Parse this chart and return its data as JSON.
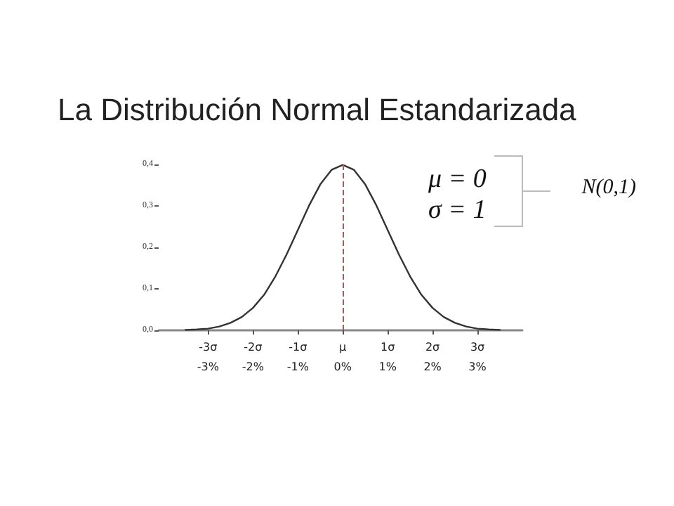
{
  "chart_data": {
    "type": "line",
    "title": "La Distribución Normal Estandarizada",
    "x": [
      -3.5,
      -3.25,
      -3,
      -2.75,
      -2.5,
      -2.25,
      -2,
      -1.75,
      -1.5,
      -1.25,
      -1,
      -0.75,
      -0.5,
      -0.25,
      0,
      0.25,
      0.5,
      0.75,
      1,
      1.25,
      1.5,
      1.75,
      2,
      2.25,
      2.5,
      2.75,
      3,
      3.25,
      3.5
    ],
    "series": [
      {
        "color": "#333333",
        "values": [
          0.001,
          0.002,
          0.004,
          0.009,
          0.018,
          0.032,
          0.054,
          0.086,
          0.13,
          0.183,
          0.242,
          0.301,
          0.352,
          0.387,
          0.399,
          0.387,
          0.352,
          0.301,
          0.242,
          0.183,
          0.13,
          0.086,
          0.054,
          0.032,
          0.018,
          0.009,
          0.004,
          0.002,
          0.001
        ]
      }
    ],
    "xlim": [
      -4.1,
      4.0
    ],
    "xticks": [
      {
        "value": -3,
        "label": "-3σ"
      },
      {
        "value": -2,
        "label": "-2σ"
      },
      {
        "value": -1,
        "label": "-1σ"
      },
      {
        "value": 0,
        "label": "μ"
      },
      {
        "value": 1,
        "label": "1σ"
      },
      {
        "value": 2,
        "label": "2σ"
      },
      {
        "value": 3,
        "label": "3σ"
      }
    ],
    "x2lim": [
      -4.1,
      4.0
    ],
    "x2ticks": [
      {
        "value": -3,
        "label": "-3%"
      },
      {
        "value": -2,
        "label": "-2%"
      },
      {
        "value": -1,
        "label": "-1%"
      },
      {
        "value": 0,
        "label": "0%"
      },
      {
        "value": 1,
        "label": "1%"
      },
      {
        "value": 2,
        "label": "2%"
      },
      {
        "value": 3,
        "label": "3%"
      }
    ],
    "ylim": [
      0,
      0.4
    ],
    "yticks": [
      {
        "value": 0,
        "label": "0,0"
      },
      {
        "value": 0.1,
        "label": "0,1"
      },
      {
        "value": 0.2,
        "label": "0,2"
      },
      {
        "value": 0.3,
        "label": "0,3"
      },
      {
        "value": 0.4,
        "label": "0,4"
      }
    ],
    "ref_lines": [
      {
        "axis": "x",
        "value": 0,
        "color": "#c0504d",
        "line_style": "dashed"
      }
    ],
    "annotations": [
      "μ = 0",
      "σ = 1",
      "N(0,1)"
    ],
    "grid": false,
    "marker": "none",
    "line_style": "solid"
  }
}
